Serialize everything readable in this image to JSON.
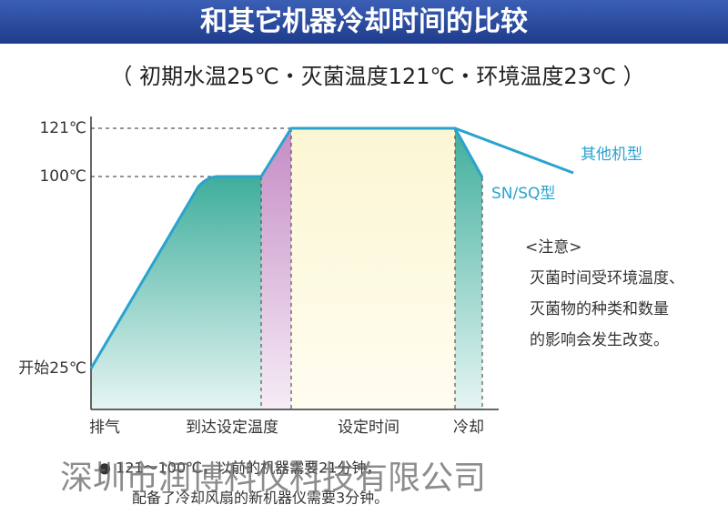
{
  "header": {
    "title": "和其它机器冷却时间的比较"
  },
  "subtitle": "（ 初期水温25℃・灭菌温度121℃・环境温度23℃ ）",
  "axis": {
    "y_labels": [
      "121℃",
      "100℃",
      "开始25℃"
    ],
    "phases": [
      "排气",
      "到达设定温度",
      "设定时间",
      "冷却"
    ]
  },
  "curves": [
    "其他机型",
    "SN/SQ型"
  ],
  "note": {
    "heading": "<注意>",
    "lines": [
      "灭菌时间受环境温度、",
      "灭菌物的种类和数量",
      "的影响会发生改变。"
    ]
  },
  "footnote": [
    "● 121～100℃，以前的机器需要21分钟，",
    "配备了冷却风扇的新机器仪需要3分钟。"
  ],
  "watermark": "深圳市润博科仪科技有限公司"
}
